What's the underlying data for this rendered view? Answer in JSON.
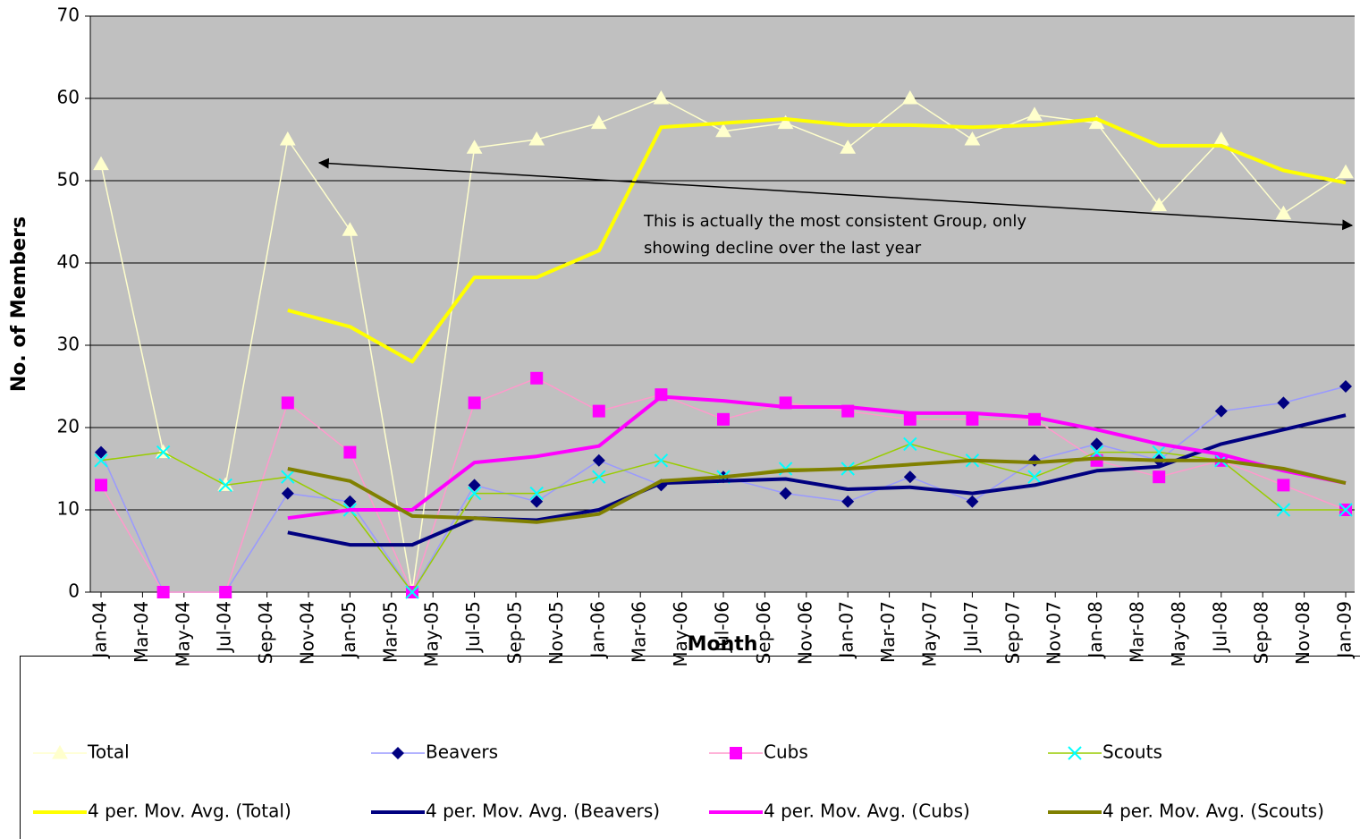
{
  "chart_data": {
    "type": "line",
    "y_label": "No. of Members",
    "x_label": "Month",
    "annotation": [
      "This is actually the most consistent Group, only",
      "showing decline over the last year"
    ],
    "x": [
      "2004-01",
      "2004-04",
      "2004-07",
      "2004-10",
      "2005-01",
      "2005-04",
      "2005-07",
      "2005-10",
      "2006-01",
      "2006-04",
      "2006-07",
      "2006-10",
      "2007-01",
      "2007-04",
      "2007-07",
      "2007-10",
      "2008-01",
      "2008-04",
      "2008-07",
      "2008-10",
      "2009-01"
    ],
    "xlim": [
      "2004-01",
      "2009-01"
    ],
    "xticks": [
      {
        "value": "2004-01",
        "label": "Jan-04"
      },
      {
        "value": "2004-03",
        "label": "Mar-04"
      },
      {
        "value": "2004-05",
        "label": "May-04"
      },
      {
        "value": "2004-07",
        "label": "Jul-04"
      },
      {
        "value": "2004-09",
        "label": "Sep-04"
      },
      {
        "value": "2004-11",
        "label": "Nov-04"
      },
      {
        "value": "2005-01",
        "label": "Jan-05"
      },
      {
        "value": "2005-03",
        "label": "Mar-05"
      },
      {
        "value": "2005-05",
        "label": "May-05"
      },
      {
        "value": "2005-07",
        "label": "Jul-05"
      },
      {
        "value": "2005-09",
        "label": "Sep-05"
      },
      {
        "value": "2005-11",
        "label": "Nov-05"
      },
      {
        "value": "2006-01",
        "label": "Jan-06"
      },
      {
        "value": "2006-03",
        "label": "Mar-06"
      },
      {
        "value": "2006-05",
        "label": "May-06"
      },
      {
        "value": "2006-07",
        "label": "Jul-06"
      },
      {
        "value": "2006-09",
        "label": "Sep-06"
      },
      {
        "value": "2006-11",
        "label": "Nov-06"
      },
      {
        "value": "2007-01",
        "label": "Jan-07"
      },
      {
        "value": "2007-03",
        "label": "Mar-07"
      },
      {
        "value": "2007-05",
        "label": "May-07"
      },
      {
        "value": "2007-07",
        "label": "Jul-07"
      },
      {
        "value": "2007-09",
        "label": "Sep-07"
      },
      {
        "value": "2007-11",
        "label": "Nov-07"
      },
      {
        "value": "2008-01",
        "label": "Jan-08"
      },
      {
        "value": "2008-03",
        "label": "Mar-08"
      },
      {
        "value": "2008-05",
        "label": "May-08"
      },
      {
        "value": "2008-07",
        "label": "Jul-08"
      },
      {
        "value": "2008-09",
        "label": "Sep-08"
      },
      {
        "value": "2008-11",
        "label": "Nov-08"
      },
      {
        "value": "2009-01",
        "label": "Jan-09"
      }
    ],
    "ylim": [
      0,
      70
    ],
    "yticks": [
      0,
      10,
      20,
      30,
      40,
      50,
      60,
      70
    ],
    "grid": true,
    "plot_background": "#c0c0c0",
    "legend": "bottom",
    "series": [
      {
        "name": "Total",
        "color": "#ffffcc",
        "marker": "triangle",
        "marker_color": "#ffffcc",
        "width": 1.5,
        "values": [
          52,
          17,
          13,
          55,
          44,
          0,
          54,
          55,
          57,
          60,
          56,
          57,
          54,
          60,
          55,
          58,
          57,
          47,
          55,
          46,
          51
        ]
      },
      {
        "name": "Beavers",
        "color": "#9999ff",
        "marker": "diamond",
        "marker_color": "#000080",
        "width": 1.5,
        "values": [
          17,
          0,
          0,
          12,
          11,
          0,
          13,
          11,
          16,
          13,
          14,
          12,
          11,
          14,
          11,
          16,
          18,
          16,
          22,
          23,
          25
        ]
      },
      {
        "name": "Cubs",
        "color": "#ff99cc",
        "marker": "square",
        "marker_color": "#ff00ff",
        "width": 1.5,
        "values": [
          13,
          0,
          0,
          23,
          17,
          0,
          23,
          26,
          22,
          24,
          21,
          23,
          22,
          21,
          21,
          21,
          16,
          14,
          16,
          13,
          10
        ]
      },
      {
        "name": "Scouts",
        "color": "#99cc00",
        "marker": "x",
        "marker_color": "#00ffff",
        "width": 1.5,
        "values": [
          16,
          17,
          13,
          14,
          10,
          0,
          12,
          12,
          14,
          16,
          14,
          15,
          15,
          18,
          16,
          14,
          17,
          17,
          16,
          10,
          10
        ]
      },
      {
        "name": "4 per. Mov. Avg. (Total)",
        "color": "#ffff00",
        "marker": "none",
        "width": 4,
        "values": [
          null,
          null,
          null,
          34.25,
          32.25,
          28,
          38.25,
          38.25,
          41.5,
          56.5,
          57,
          57.5,
          56.75,
          56.75,
          56.5,
          56.75,
          57.5,
          54.25,
          54.25,
          51.25,
          49.75
        ]
      },
      {
        "name": "4 per. Mov. Avg. (Beavers)",
        "color": "#000080",
        "marker": "none",
        "width": 4,
        "values": [
          null,
          null,
          null,
          7.25,
          5.75,
          5.75,
          9,
          8.75,
          10,
          13.25,
          13.5,
          13.75,
          12.5,
          12.75,
          12,
          13,
          14.75,
          15.25,
          18,
          19.75,
          21.5
        ]
      },
      {
        "name": "4 per. Mov. Avg. (Cubs)",
        "color": "#ff00ff",
        "marker": "none",
        "width": 4,
        "values": [
          null,
          null,
          null,
          9,
          10,
          10,
          15.75,
          16.5,
          17.75,
          23.75,
          23.25,
          22.5,
          22.5,
          21.75,
          21.75,
          21.25,
          19.75,
          18,
          16.75,
          14.75,
          13.25
        ]
      },
      {
        "name": "4 per. Mov. Avg. (Scouts)",
        "color": "#808000",
        "marker": "none",
        "width": 4,
        "values": [
          null,
          null,
          null,
          15,
          13.5,
          9.25,
          9,
          8.5,
          9.5,
          13.5,
          14,
          14.75,
          15,
          15.5,
          16,
          15.75,
          16.25,
          16,
          16,
          15,
          13.25
        ]
      }
    ]
  }
}
